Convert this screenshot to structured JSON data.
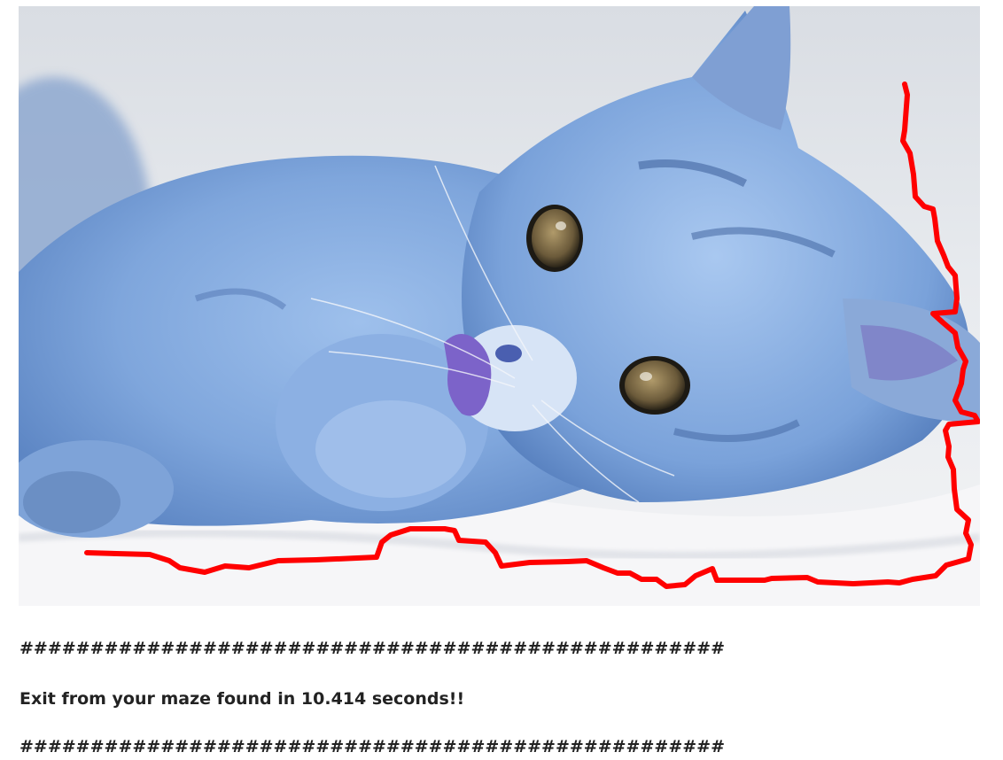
{
  "image": {
    "subject": "blue-tinted kitten lying on white blanket",
    "path_color": "#ff0000"
  },
  "output": {
    "separator_top": "##################################################",
    "message": "Exit from your maze found in 10.414 seconds!!",
    "separator_bottom": "##################################################"
  }
}
